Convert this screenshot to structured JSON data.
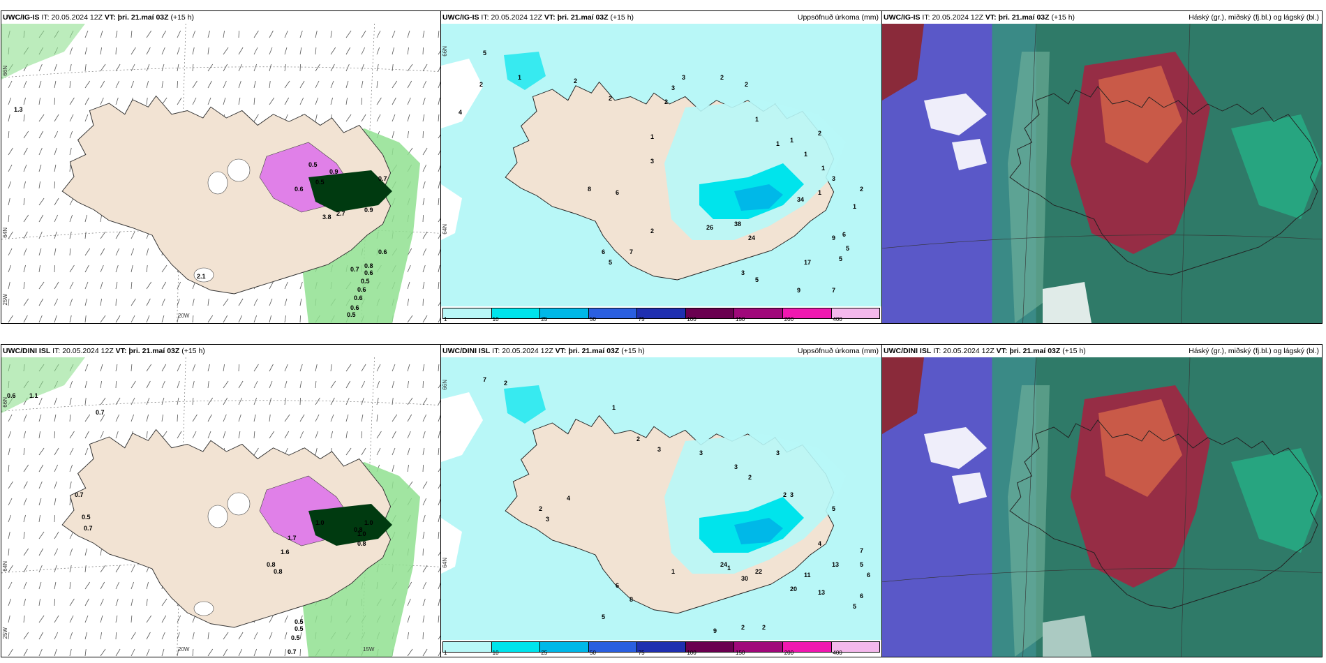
{
  "panels": {
    "p1": {
      "model": "UWC/IG-IS",
      "it_label": "IT:",
      "it": "20.05.2024 12Z",
      "vt_label": "VT:",
      "vt": "þri. 21.maí 03Z",
      "lead": "(+15 h)",
      "right_title": ""
    },
    "p2": {
      "model": "UWC/IG-IS",
      "it_label": "IT:",
      "it": "20.05.2024 12Z",
      "vt_label": "VT:",
      "vt": "þri. 21.maí 03Z",
      "lead": "(+15 h)",
      "right_title": "Uppsöfnuð úrkoma (mm)"
    },
    "p3": {
      "model": "UWC/IG-IS",
      "it_label": "IT:",
      "it": "20.05.2024 12Z",
      "vt_label": "VT:",
      "vt": "þri. 21.maí 03Z",
      "lead": "(+15 h)",
      "right_title": "Háský (gr.), miðský (fj.bl.) og lágský (bl.)"
    },
    "p4": {
      "model": "UWC/DINI ISL",
      "it_label": "IT:",
      "it": "20.05.2024 12Z",
      "vt_label": "VT:",
      "vt": "þri. 21.maí 03Z",
      "lead": "(+15 h)",
      "right_title": ""
    },
    "p5": {
      "model": "UWC/DINI ISL",
      "it_label": "IT:",
      "it": "20.05.2024 12Z",
      "vt_label": "VT:",
      "vt": "þri. 21.maí 03Z",
      "lead": "(+15 h)",
      "right_title": "Uppsöfnuð úrkoma (mm)"
    },
    "p6": {
      "model": "UWC/DINI ISL",
      "it_label": "IT:",
      "it": "20.05.2024 12Z",
      "vt_label": "VT:",
      "vt": "þri. 21.maí 03Z",
      "lead": "(+15 h)",
      "right_title": "Háský (gr.), miðský (fj.bl.) og lágský (bl.)"
    }
  },
  "axis_labels": {
    "lat_66": "66N",
    "lat_64": "64N",
    "lon_25": "25W",
    "lon_20": "20W",
    "lon_15": "15W",
    "wrap_h": "h)"
  },
  "colorbar": {
    "labels": [
      "1",
      "10",
      "25",
      "50",
      "75",
      "100",
      "150",
      "200",
      "400"
    ],
    "colors": [
      "#b8f7f7",
      "#00e4ec",
      "#00b8e8",
      "#2a5fe0",
      "#1f2fb0",
      "#6a0050",
      "#a0087a",
      "#f018b0",
      "#f4b8ec"
    ]
  },
  "map_colors": {
    "land": "#f2e3d3",
    "sea": "#ffffff",
    "precip_light": "#b8f7f7",
    "precip_mid": "#00e4ec",
    "precip_dark": "#00b8e8",
    "snow": "#e080e8",
    "rain_green": "#90e090",
    "rain_dark": "#003a10"
  },
  "precip_values_top": [
    "5",
    "4",
    "2",
    "1",
    "2",
    "2",
    "3",
    "3",
    "2",
    "2",
    "1",
    "1",
    "1",
    "2",
    "1",
    "1",
    "3",
    "2",
    "1",
    "1",
    "6",
    "9",
    "17",
    "5",
    "5",
    "3",
    "5",
    "9",
    "7",
    "6",
    "5",
    "7",
    "8",
    "6",
    "2",
    "2",
    "1",
    "3",
    "26",
    "38",
    "24",
    "34"
  ],
  "precip_values_bottom": [
    "7",
    "2",
    "1",
    "2",
    "3",
    "3",
    "3",
    "2",
    "3",
    "2",
    "5",
    "4",
    "3",
    "1",
    "7",
    "5",
    "6",
    "6",
    "5",
    "13",
    "11",
    "13",
    "20",
    "22",
    "30",
    "24",
    "4",
    "2",
    "3",
    "9",
    "5",
    "6",
    "8",
    "1",
    "2",
    "2"
  ],
  "wind_values_top": [
    "1.3",
    "0.5",
    "0.9",
    "0.6",
    "0.5",
    "3.8",
    "2.7",
    "0.7",
    "0.9",
    "0.6",
    "0.5",
    "0.6",
    "0.6",
    "0.6",
    "0.5",
    "0.7",
    "0.8",
    "0.6",
    "2.1"
  ],
  "wind_values_bottom": [
    "0.6",
    "1.1",
    "0.7",
    "0.7",
    "0.5",
    "1.0",
    "1.7",
    "1.6",
    "0.8",
    "0.8",
    "1.0",
    "0.8",
    "0.5",
    "0.5",
    "0.7",
    "1.0",
    "0.8",
    "0.7",
    "0.5"
  ]
}
